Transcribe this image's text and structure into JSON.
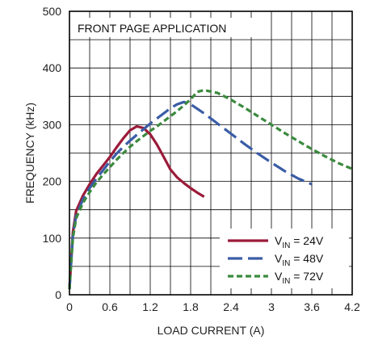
{
  "chart_data": {
    "type": "line",
    "title": "",
    "annotation": "FRONT PAGE APPLICATION",
    "xlabel": "LOAD CURRENT (A)",
    "ylabel": "FREQUENCY (kHz)",
    "xlim": [
      0,
      4.2
    ],
    "ylim": [
      0,
      500
    ],
    "xticks": [
      0,
      0.6,
      1.2,
      1.8,
      2.4,
      3,
      3.6,
      4.2
    ],
    "xtick_labels": [
      "0",
      "0.6",
      "1.2",
      "1.8",
      "2.4",
      "3",
      "3.6",
      "4.2"
    ],
    "yticks": [
      0,
      100,
      200,
      300,
      400,
      500
    ],
    "ytick_labels": [
      "0",
      "100",
      "200",
      "300",
      "400",
      "500"
    ],
    "grid": true,
    "legend_position": "bottom-right",
    "series": [
      {
        "name": "VIN = 24V",
        "label_main": "V",
        "label_sub": "IN",
        "label_rest": " = 24V",
        "color": "#9b1b3a",
        "dash": "solid",
        "x": [
          0,
          0.05,
          0.1,
          0.2,
          0.3,
          0.4,
          0.5,
          0.6,
          0.7,
          0.8,
          0.9,
          1.0,
          1.1,
          1.2,
          1.3,
          1.4,
          1.5,
          1.6,
          1.7,
          1.8,
          1.9,
          2.0
        ],
        "y": [
          10,
          110,
          148,
          175,
          195,
          213,
          228,
          243,
          260,
          276,
          290,
          297,
          294,
          283,
          265,
          243,
          221,
          207,
          197,
          188,
          180,
          173
        ]
      },
      {
        "name": "VIN = 48V",
        "label_main": "V",
        "label_sub": "IN",
        "label_rest": " = 48V",
        "color": "#3b5da6",
        "dash": "long",
        "x": [
          0,
          0.05,
          0.1,
          0.2,
          0.3,
          0.4,
          0.5,
          0.6,
          0.7,
          0.8,
          0.9,
          1.0,
          1.1,
          1.2,
          1.3,
          1.4,
          1.5,
          1.6,
          1.7,
          1.8,
          2.0,
          2.2,
          2.4,
          2.6,
          2.8,
          3.0,
          3.2,
          3.4,
          3.6
        ],
        "y": [
          10,
          105,
          140,
          168,
          188,
          205,
          220,
          235,
          249,
          261,
          272,
          282,
          292,
          302,
          311,
          320,
          329,
          336,
          340,
          336,
          320,
          302,
          284,
          266,
          249,
          233,
          218,
          205,
          195
        ]
      },
      {
        "name": "VIN = 72V",
        "label_main": "V",
        "label_sub": "IN",
        "label_rest": " = 72V",
        "color": "#3b8a3e",
        "dash": "short",
        "x": [
          0,
          0.05,
          0.1,
          0.2,
          0.3,
          0.4,
          0.5,
          0.6,
          0.7,
          0.8,
          0.9,
          1.0,
          1.1,
          1.2,
          1.3,
          1.4,
          1.5,
          1.6,
          1.7,
          1.8,
          1.9,
          2.0,
          2.2,
          2.4,
          2.6,
          2.8,
          3.0,
          3.2,
          3.4,
          3.6,
          3.8,
          4.0,
          4.2
        ],
        "y": [
          10,
          100,
          135,
          162,
          181,
          198,
          212,
          225,
          238,
          250,
          261,
          271,
          280,
          289,
          297,
          306,
          315,
          324,
          334,
          345,
          358,
          361,
          356,
          344,
          330,
          315,
          300,
          285,
          271,
          257,
          244,
          232,
          222
        ]
      }
    ]
  }
}
